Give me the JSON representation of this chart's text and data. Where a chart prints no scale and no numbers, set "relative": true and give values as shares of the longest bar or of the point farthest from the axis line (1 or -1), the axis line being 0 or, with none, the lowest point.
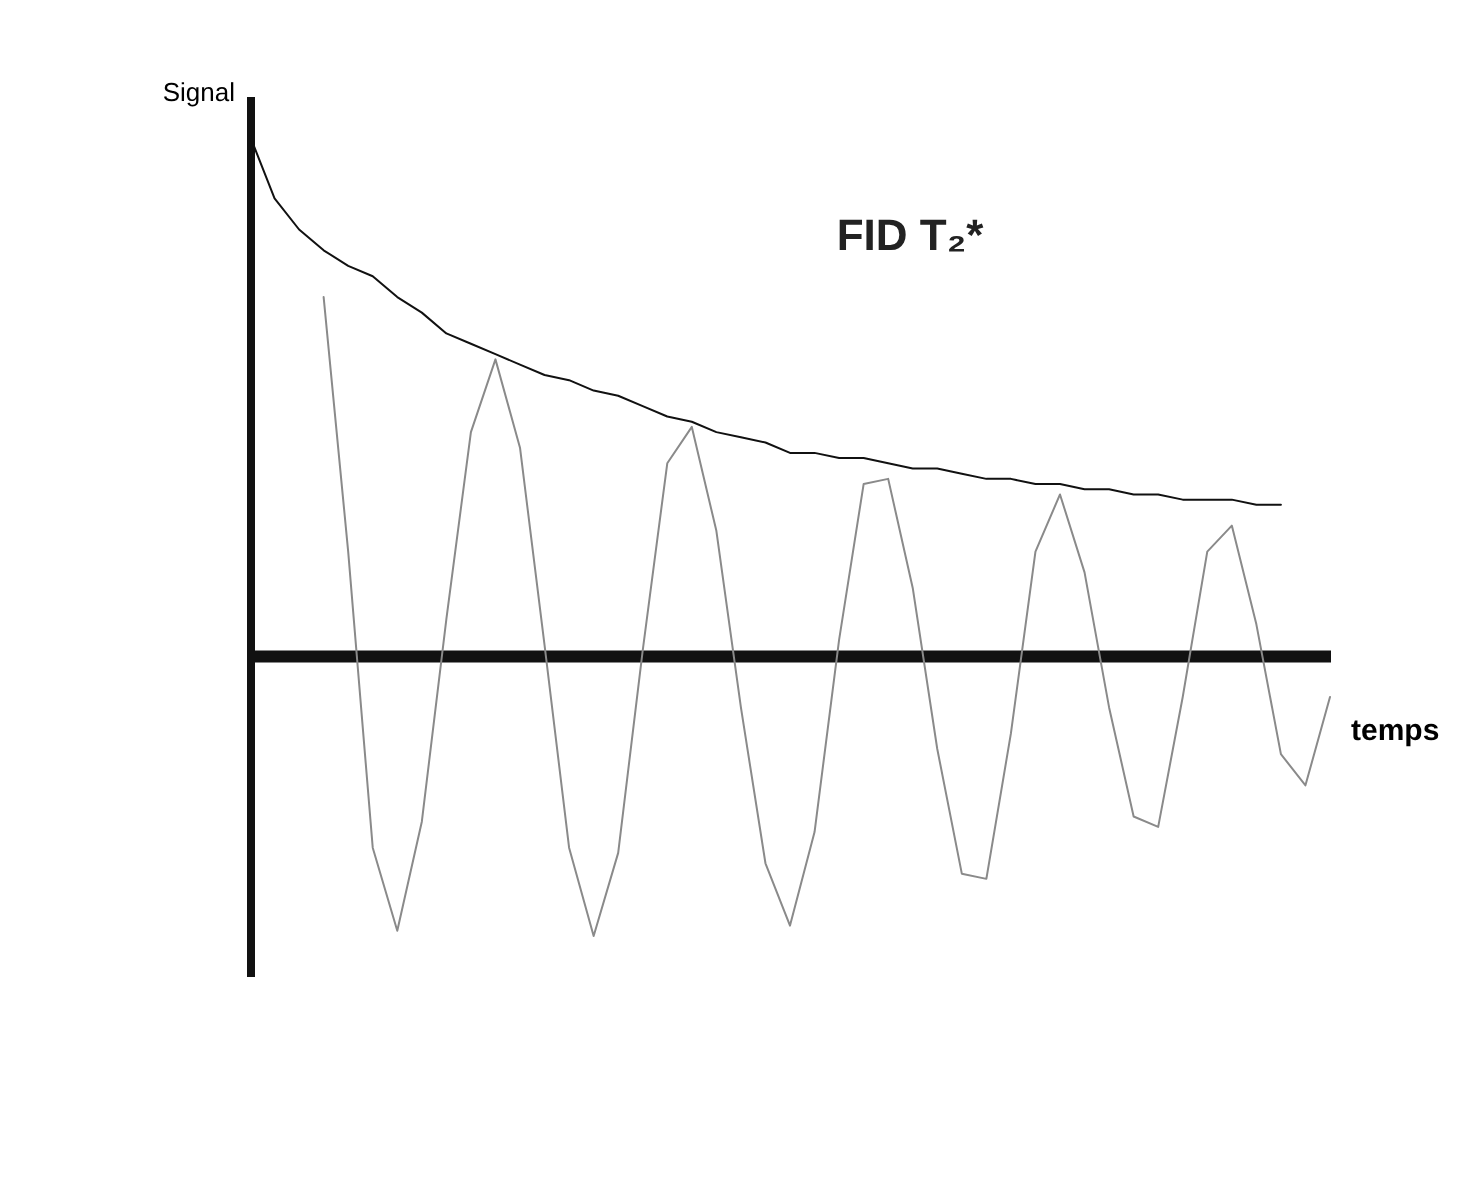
{
  "chart_data": {
    "type": "line",
    "title": "FID T₂*",
    "xlabel": "temps",
    "ylabel": "Signal",
    "relative": true,
    "tick_labels": false,
    "legend": false,
    "grid": false,
    "marker": "none",
    "categories": [
      null,
      null,
      null,
      null,
      null,
      null,
      null,
      null,
      null,
      null,
      null,
      null,
      null,
      null,
      null,
      null,
      null,
      null,
      null,
      null,
      null,
      null,
      null,
      null,
      null,
      null,
      null,
      null,
      null,
      null,
      null,
      null,
      null,
      null,
      null,
      null,
      null,
      null,
      null,
      null,
      null,
      null,
      null,
      null,
      null
    ],
    "series": [
      {
        "color": "#8a8a8a",
        "values": [
          null,
          null,
          null,
          0.69,
          0.2,
          -0.37,
          -0.53,
          -0.32,
          0.07,
          0.43,
          0.57,
          0.4,
          0.02,
          -0.37,
          -0.54,
          -0.38,
          0.01,
          0.37,
          0.44,
          0.24,
          -0.1,
          -0.4,
          -0.52,
          -0.34,
          0.03,
          0.33,
          0.34,
          0.13,
          -0.18,
          -0.42,
          -0.43,
          -0.15,
          0.2,
          0.31,
          0.16,
          -0.1,
          -0.31,
          -0.33,
          -0.08,
          0.2,
          0.25,
          0.06,
          -0.19,
          -0.25,
          -0.08
        ]
      },
      {
        "color": "#111111",
        "values": [
          1.0,
          0.88,
          0.82,
          0.78,
          0.75,
          0.73,
          0.69,
          0.66,
          0.62,
          0.6,
          0.58,
          0.56,
          0.54,
          0.53,
          0.51,
          0.5,
          0.48,
          0.46,
          0.45,
          0.43,
          0.42,
          0.41,
          0.39,
          0.39,
          0.38,
          0.38,
          0.37,
          0.36,
          0.36,
          0.35,
          0.34,
          0.34,
          0.33,
          0.33,
          0.32,
          0.32,
          0.31,
          0.31,
          0.3,
          0.3,
          0.3,
          0.29,
          0.29,
          null,
          null
        ]
      }
    ]
  }
}
